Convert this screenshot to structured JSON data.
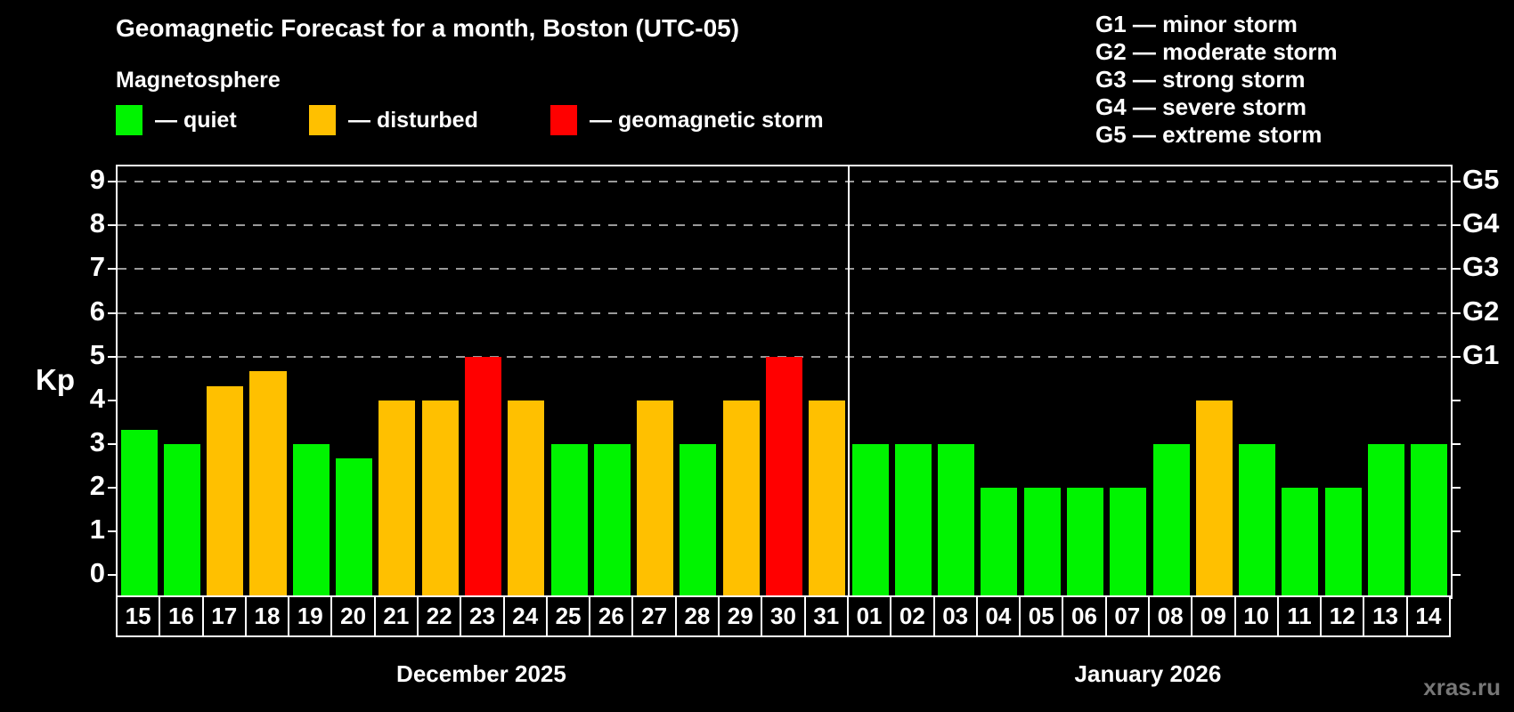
{
  "title": "Geomagnetic Forecast for a month, Boston (UTC-05)",
  "subtitle": "Magnetosphere",
  "kp_axis_label": "Kp",
  "watermark": "xras.ru",
  "legend": {
    "items": [
      {
        "key": "quiet",
        "label": "— quiet",
        "color": "#00f400"
      },
      {
        "key": "disturbed",
        "label": "— disturbed",
        "color": "#ffc000"
      },
      {
        "key": "storm",
        "label": "— geomagnetic storm",
        "color": "#ff0000"
      }
    ]
  },
  "g_scale_legend": [
    "G1 — minor storm",
    "G2 — moderate storm",
    "G3 — strong storm",
    "G4 — severe storm",
    "G5 — extreme storm"
  ],
  "chart_data": {
    "type": "bar",
    "title": "Geomagnetic Forecast for a month, Boston (UTC-05)",
    "ylabel": "Kp",
    "xlabel": "",
    "y_ticks": [
      0,
      1,
      2,
      3,
      4,
      5,
      6,
      7,
      8,
      9
    ],
    "gridlines_at": [
      5,
      6,
      7,
      8,
      9
    ],
    "grid": "dashed horizontal at Kp 5-9 only",
    "ylim": [
      -0.5,
      9.35
    ],
    "right_axis_labels": [
      {
        "label": "G1",
        "kp": 5
      },
      {
        "label": "G2",
        "kp": 6
      },
      {
        "label": "G3",
        "kp": 7
      },
      {
        "label": "G4",
        "kp": 8
      },
      {
        "label": "G5",
        "kp": 9
      }
    ],
    "month_groups": [
      {
        "label": "December 2025",
        "days": 17
      },
      {
        "label": "January 2026",
        "days": 14
      }
    ],
    "categories": [
      "15",
      "16",
      "17",
      "18",
      "19",
      "20",
      "21",
      "22",
      "23",
      "24",
      "25",
      "26",
      "27",
      "28",
      "29",
      "30",
      "31",
      "01",
      "02",
      "03",
      "04",
      "05",
      "06",
      "07",
      "08",
      "09",
      "10",
      "11",
      "12",
      "13",
      "14"
    ],
    "values": [
      3.33,
      3,
      4.33,
      4.67,
      3,
      2.67,
      4,
      4,
      5,
      4,
      3,
      3,
      4,
      3,
      4,
      5,
      4,
      3,
      3,
      3,
      2,
      2,
      2,
      2,
      3,
      4,
      3,
      2,
      2,
      3,
      3
    ],
    "statuses": [
      "quiet",
      "quiet",
      "disturbed",
      "disturbed",
      "quiet",
      "quiet",
      "disturbed",
      "disturbed",
      "storm",
      "disturbed",
      "quiet",
      "quiet",
      "disturbed",
      "quiet",
      "disturbed",
      "storm",
      "disturbed",
      "quiet",
      "quiet",
      "quiet",
      "quiet",
      "quiet",
      "quiet",
      "quiet",
      "quiet",
      "disturbed",
      "quiet",
      "quiet",
      "quiet",
      "quiet",
      "quiet"
    ]
  }
}
